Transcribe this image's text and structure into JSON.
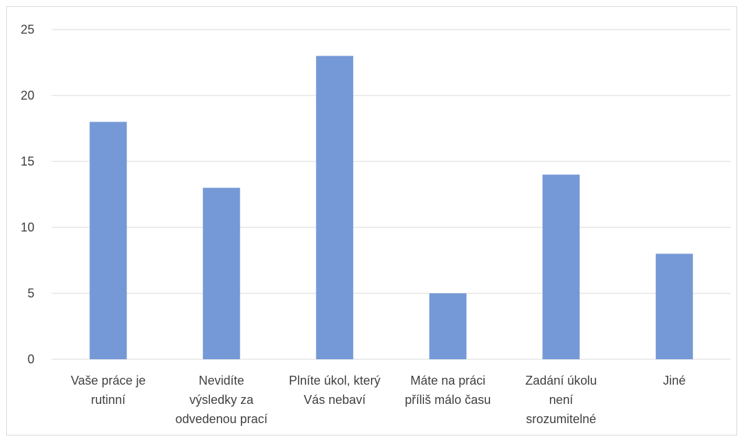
{
  "chart_data": {
    "type": "bar",
    "categories": [
      [
        "Vaše práce je",
        "rutinní"
      ],
      [
        "Nevidíte",
        "výsledky za",
        "odvedenou prací"
      ],
      [
        "Plníte úkol, který",
        "Vás nebaví"
      ],
      [
        "Máte na práci",
        "příliš málo času"
      ],
      [
        "Zadání úkolu",
        "není",
        "srozumitelné"
      ],
      [
        "Jiné"
      ]
    ],
    "values": [
      18,
      13,
      23,
      5,
      14,
      8
    ],
    "yticks": [
      0,
      5,
      10,
      15,
      20,
      25
    ],
    "ylim": [
      0,
      25
    ],
    "title": "",
    "xlabel": "",
    "ylabel": "",
    "grid": true,
    "colors": {
      "bar": "#7599d6",
      "grid": "#d9d9d9",
      "text": "#404040"
    }
  }
}
